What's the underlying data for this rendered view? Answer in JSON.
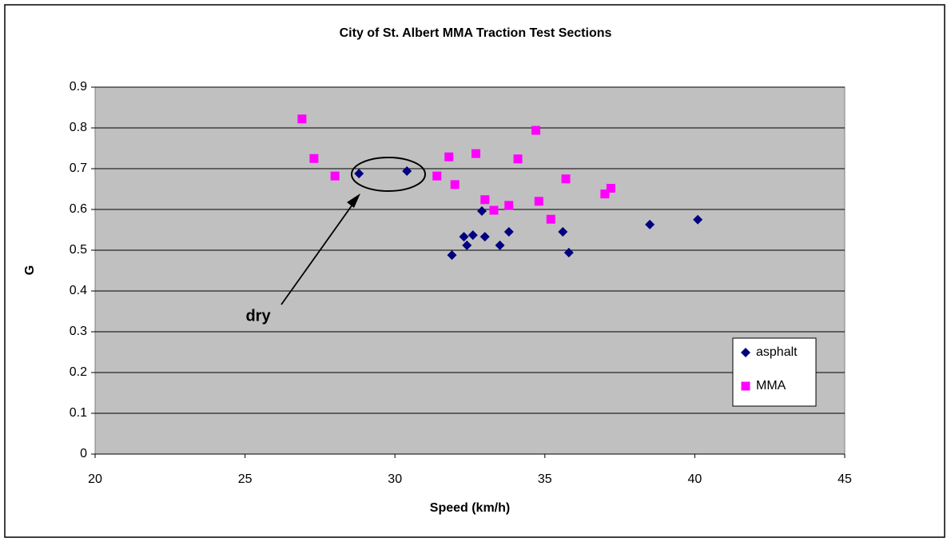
{
  "chart_data": {
    "type": "scatter",
    "title": "City of St. Albert MMA Traction Test Sections",
    "xlabel": "Speed (km/h)",
    "ylabel": "G",
    "annotation": "dry",
    "xlim": [
      20,
      45
    ],
    "xticks": [
      20,
      25,
      30,
      35,
      40,
      45
    ],
    "ylim": [
      0,
      0.9
    ],
    "yticks": [
      0,
      0.1,
      0.2,
      0.3,
      0.4,
      0.5,
      0.6,
      0.7,
      0.8,
      0.9
    ],
    "grid": true,
    "legend": "right",
    "series": [
      {
        "name": "asphalt",
        "color": "#000080",
        "marker": "diamond",
        "x": [
          28.8,
          30.4,
          31.9,
          32.3,
          32.4,
          32.6,
          32.9,
          33.0,
          33.5,
          33.8,
          35.6,
          35.8,
          38.5,
          40.1
        ],
        "values": [
          0.688,
          0.694,
          0.488,
          0.533,
          0.512,
          0.537,
          0.596,
          0.533,
          0.512,
          0.545,
          0.545,
          0.494,
          0.563,
          0.575
        ]
      },
      {
        "name": "MMA",
        "color": "#ff00ff",
        "marker": "square",
        "x": [
          26.9,
          27.3,
          28.0,
          31.4,
          31.8,
          32.0,
          32.7,
          33.0,
          33.3,
          33.8,
          34.1,
          34.7,
          34.8,
          35.2,
          35.7,
          37.0,
          37.2
        ],
        "values": [
          0.822,
          0.725,
          0.682,
          0.682,
          0.729,
          0.661,
          0.737,
          0.624,
          0.598,
          0.61,
          0.724,
          0.794,
          0.62,
          0.576,
          0.675,
          0.638,
          0.652
        ]
      }
    ]
  }
}
